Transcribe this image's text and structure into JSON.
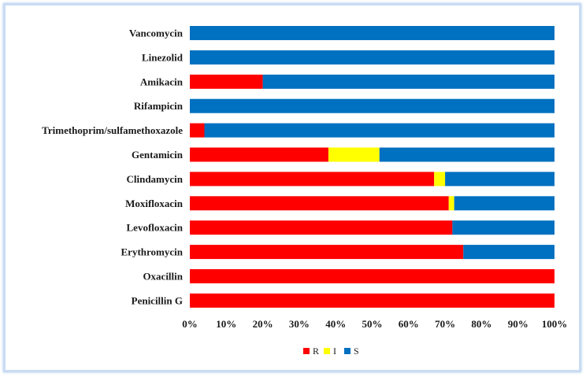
{
  "chart_data": {
    "type": "bar",
    "orientation": "horizontal",
    "stacked": true,
    "title": "",
    "xlabel": "",
    "ylabel": "",
    "xlim": [
      0,
      100
    ],
    "x_tick_labels": [
      "0%",
      "10%",
      "20%",
      "30%",
      "40%",
      "50%",
      "60%",
      "70%",
      "80%",
      "90%",
      "100%"
    ],
    "categories": [
      "Vancomycin",
      "Linezolid",
      "Amikacin",
      "Rifampicin",
      "Trimethoprim/sulfamethoxazole",
      "Gentamicin",
      "Clindamycin",
      "Moxifloxacin",
      "Levofloxacin",
      "Erythromycin",
      "Oxacillin",
      "Penicillin G"
    ],
    "series": [
      {
        "name": "R",
        "color": "#ff0000",
        "values": [
          0,
          0,
          20,
          0,
          4,
          38,
          67,
          71,
          72,
          75,
          100,
          100
        ]
      },
      {
        "name": "I",
        "color": "#ffff00",
        "values": [
          0,
          0,
          0,
          0,
          0,
          14,
          3,
          1.5,
          0,
          0,
          0,
          0
        ]
      },
      {
        "name": "S",
        "color": "#0070c0",
        "values": [
          100,
          100,
          80,
          100,
          96,
          48,
          30,
          27.5,
          28,
          25,
          0,
          0
        ]
      }
    ],
    "grid": false,
    "legend_position": "bottom-center"
  }
}
